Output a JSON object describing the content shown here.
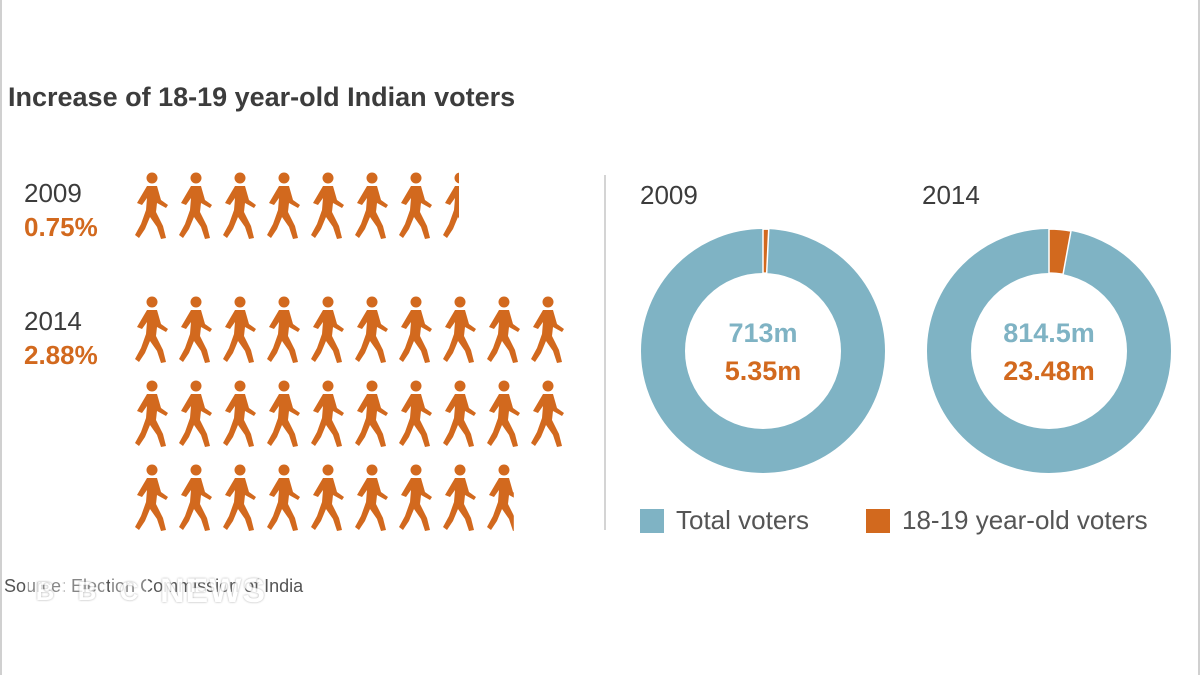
{
  "title": "Increase of 18-19 year-old Indian voters",
  "colors": {
    "total": "#7fb3c4",
    "young": "#d2691e",
    "text": "#3c3c3c"
  },
  "icons": {
    "walker": "walking-person-icon"
  },
  "chart_data": [
    {
      "type": "pictogram",
      "title": "Increase of 18-19 year-old Indian voters",
      "rows": [
        {
          "year": "2009",
          "percent_label": "0.75%",
          "value": 0.75
        },
        {
          "year": "2014",
          "percent_label": "2.88%",
          "value": 2.88
        }
      ]
    },
    {
      "type": "pie",
      "year": "2009",
      "total_label": "713m",
      "young_label": "5.35m",
      "values": [
        713,
        5.35
      ],
      "categories": [
        "Total voters",
        "18-19 year-old voters"
      ]
    },
    {
      "type": "pie",
      "year": "2014",
      "total_label": "814.5m",
      "young_label": "23.48m",
      "values": [
        814.5,
        23.48
      ],
      "categories": [
        "Total voters",
        "18-19 year-old voters"
      ]
    }
  ],
  "legend": {
    "total": "Total voters",
    "young": "18-19 year-old voters"
  },
  "source": "Source: Election Commission of India",
  "watermark": "BBC NEWS"
}
